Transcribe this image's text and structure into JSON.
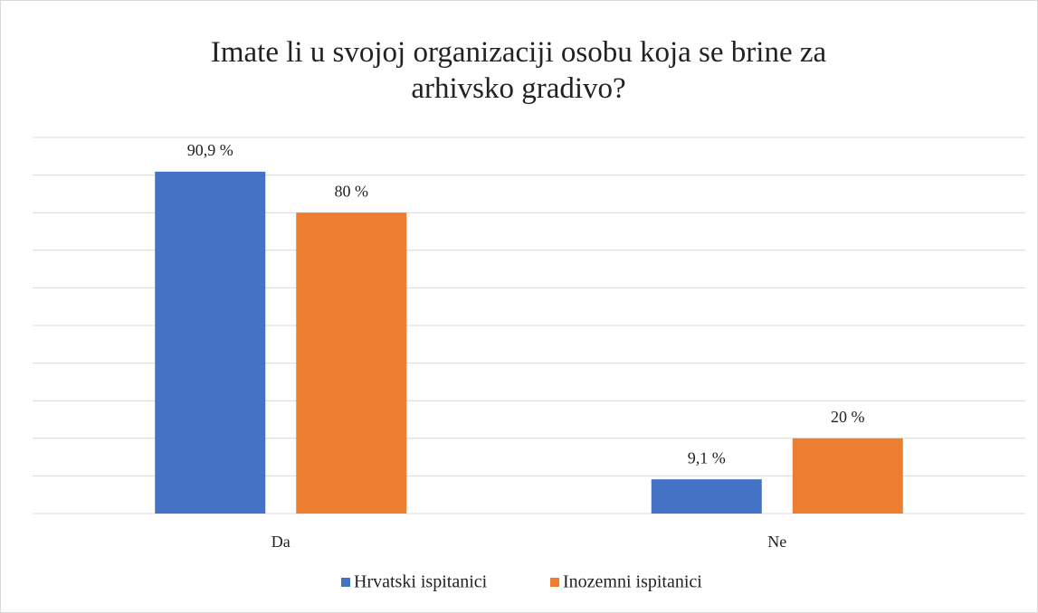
{
  "chart_data": {
    "type": "bar",
    "title": "Imate li u svojoj organizaciji osobu koja se brine za arhivsko gradivo?",
    "categories": [
      "Da",
      "Ne"
    ],
    "series": [
      {
        "name": "Hrvatski ispitanici",
        "color": "#4472c4",
        "values": [
          90.9,
          9.1
        ],
        "value_labels": [
          "90,9 %",
          "9,1 %"
        ]
      },
      {
        "name": "Inozemni ispitanici",
        "color": "#ed7d31",
        "values": [
          80,
          20
        ],
        "value_labels": [
          "80 %",
          "20 %"
        ]
      }
    ],
    "ylim": [
      0,
      100
    ],
    "yticks": [
      0,
      10,
      20,
      30,
      40,
      50,
      60,
      70,
      80,
      90,
      100
    ],
    "grid": true,
    "legend": "bottom"
  }
}
